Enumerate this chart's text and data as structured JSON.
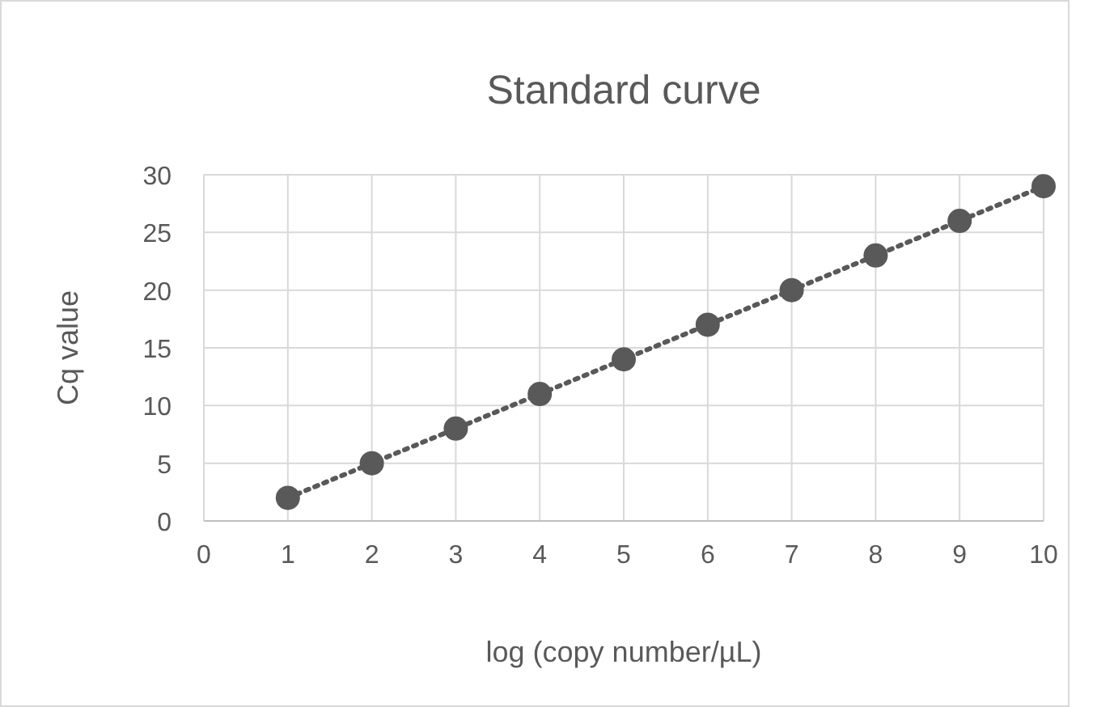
{
  "chart_data": {
    "type": "scatter",
    "title": "Standard curve",
    "xlabel": "log (copy number/µL)",
    "ylabel": "Cq value",
    "x": [
      1,
      2,
      3,
      4,
      5,
      6,
      7,
      8,
      9,
      10
    ],
    "series": [
      {
        "color": "#595959",
        "values": [
          2,
          5,
          8,
          11,
          14,
          17,
          20,
          23,
          26,
          29
        ],
        "marker": "circle"
      },
      {
        "type": "line",
        "color": "#595959",
        "x": [
          1,
          10
        ],
        "values": [
          2,
          29
        ],
        "marker": "none",
        "line_style": "dotted"
      }
    ],
    "xlim": [
      0,
      10
    ],
    "xticks": [
      0,
      1,
      2,
      3,
      4,
      5,
      6,
      7,
      8,
      9,
      10
    ],
    "ylim": [
      0,
      30
    ],
    "yticks": [
      0,
      5,
      10,
      15,
      20,
      25,
      30
    ],
    "grid": true
  }
}
